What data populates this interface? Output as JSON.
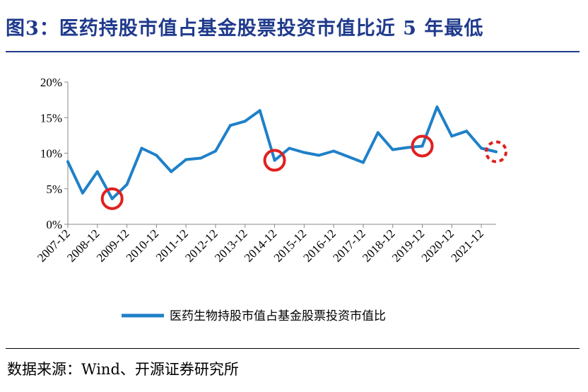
{
  "figure": {
    "title": "图3：医药持股市值占基金股票投资市值比近 5 年最低",
    "source": "数据来源：Wind、开源证券研究所"
  },
  "chart_data": {
    "type": "line",
    "title": "",
    "xlabel": "",
    "ylabel": "",
    "ylim": [
      0,
      20
    ],
    "y_ticks": [
      "0%",
      "5%",
      "10%",
      "15%",
      "20%"
    ],
    "y_unit": "%",
    "x_tick_labels": [
      "2007-12",
      "2008-12",
      "2009-12",
      "2010-12",
      "2011-12",
      "2012-12",
      "2013-12",
      "2014-12",
      "2015-12",
      "2016-12",
      "2017-12",
      "2018-12",
      "2019-12",
      "2020-12",
      "2021-12"
    ],
    "legend_position": "bottom",
    "line_color": "#1f80c8",
    "highlight_color": "#e02020",
    "series": [
      {
        "name": "医药生物持股市值占基金股票投资市值比",
        "values": [
          8.8,
          4.4,
          7.4,
          3.6,
          5.6,
          10.7,
          9.7,
          7.4,
          9.1,
          9.3,
          10.3,
          13.9,
          14.5,
          16.0,
          9.0,
          10.7,
          10.1,
          9.7,
          10.3,
          9.5,
          8.7,
          12.9,
          10.5,
          10.8,
          11.0,
          16.5,
          12.4,
          13.1,
          10.7,
          10.2
        ]
      }
    ],
    "highlights": [
      {
        "index": 3,
        "style": "solid"
      },
      {
        "index": 14,
        "style": "solid"
      },
      {
        "index": 24,
        "style": "solid"
      },
      {
        "index": 29,
        "style": "dashed"
      }
    ]
  }
}
